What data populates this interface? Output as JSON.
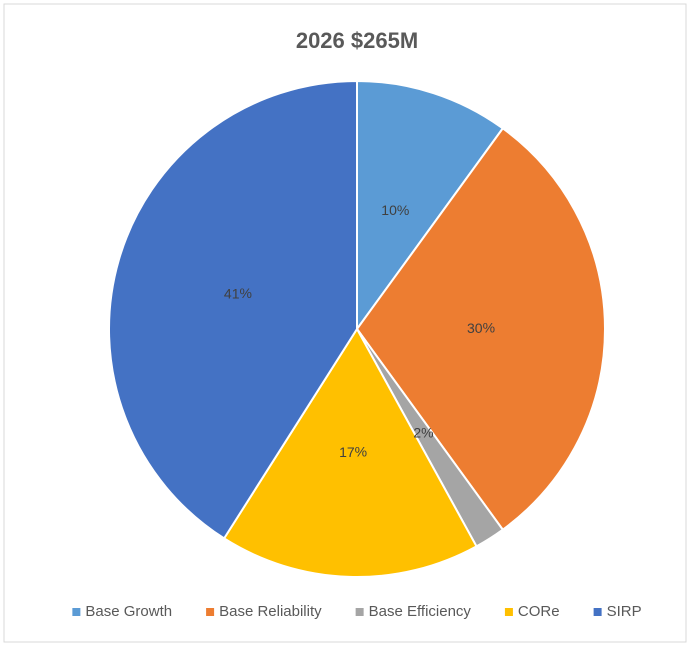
{
  "chart_data": {
    "type": "pie",
    "title": "2026 $265M",
    "categories": [
      "Base Growth",
      "Base Reliability",
      "Base Efficiency",
      "CORe",
      "SIRP"
    ],
    "values": [
      10,
      30,
      2,
      17,
      41
    ],
    "colors": [
      "#5b9bd5",
      "#ed7d31",
      "#a5a5a5",
      "#ffc000",
      "#4472c4"
    ],
    "legend": "bottom"
  }
}
